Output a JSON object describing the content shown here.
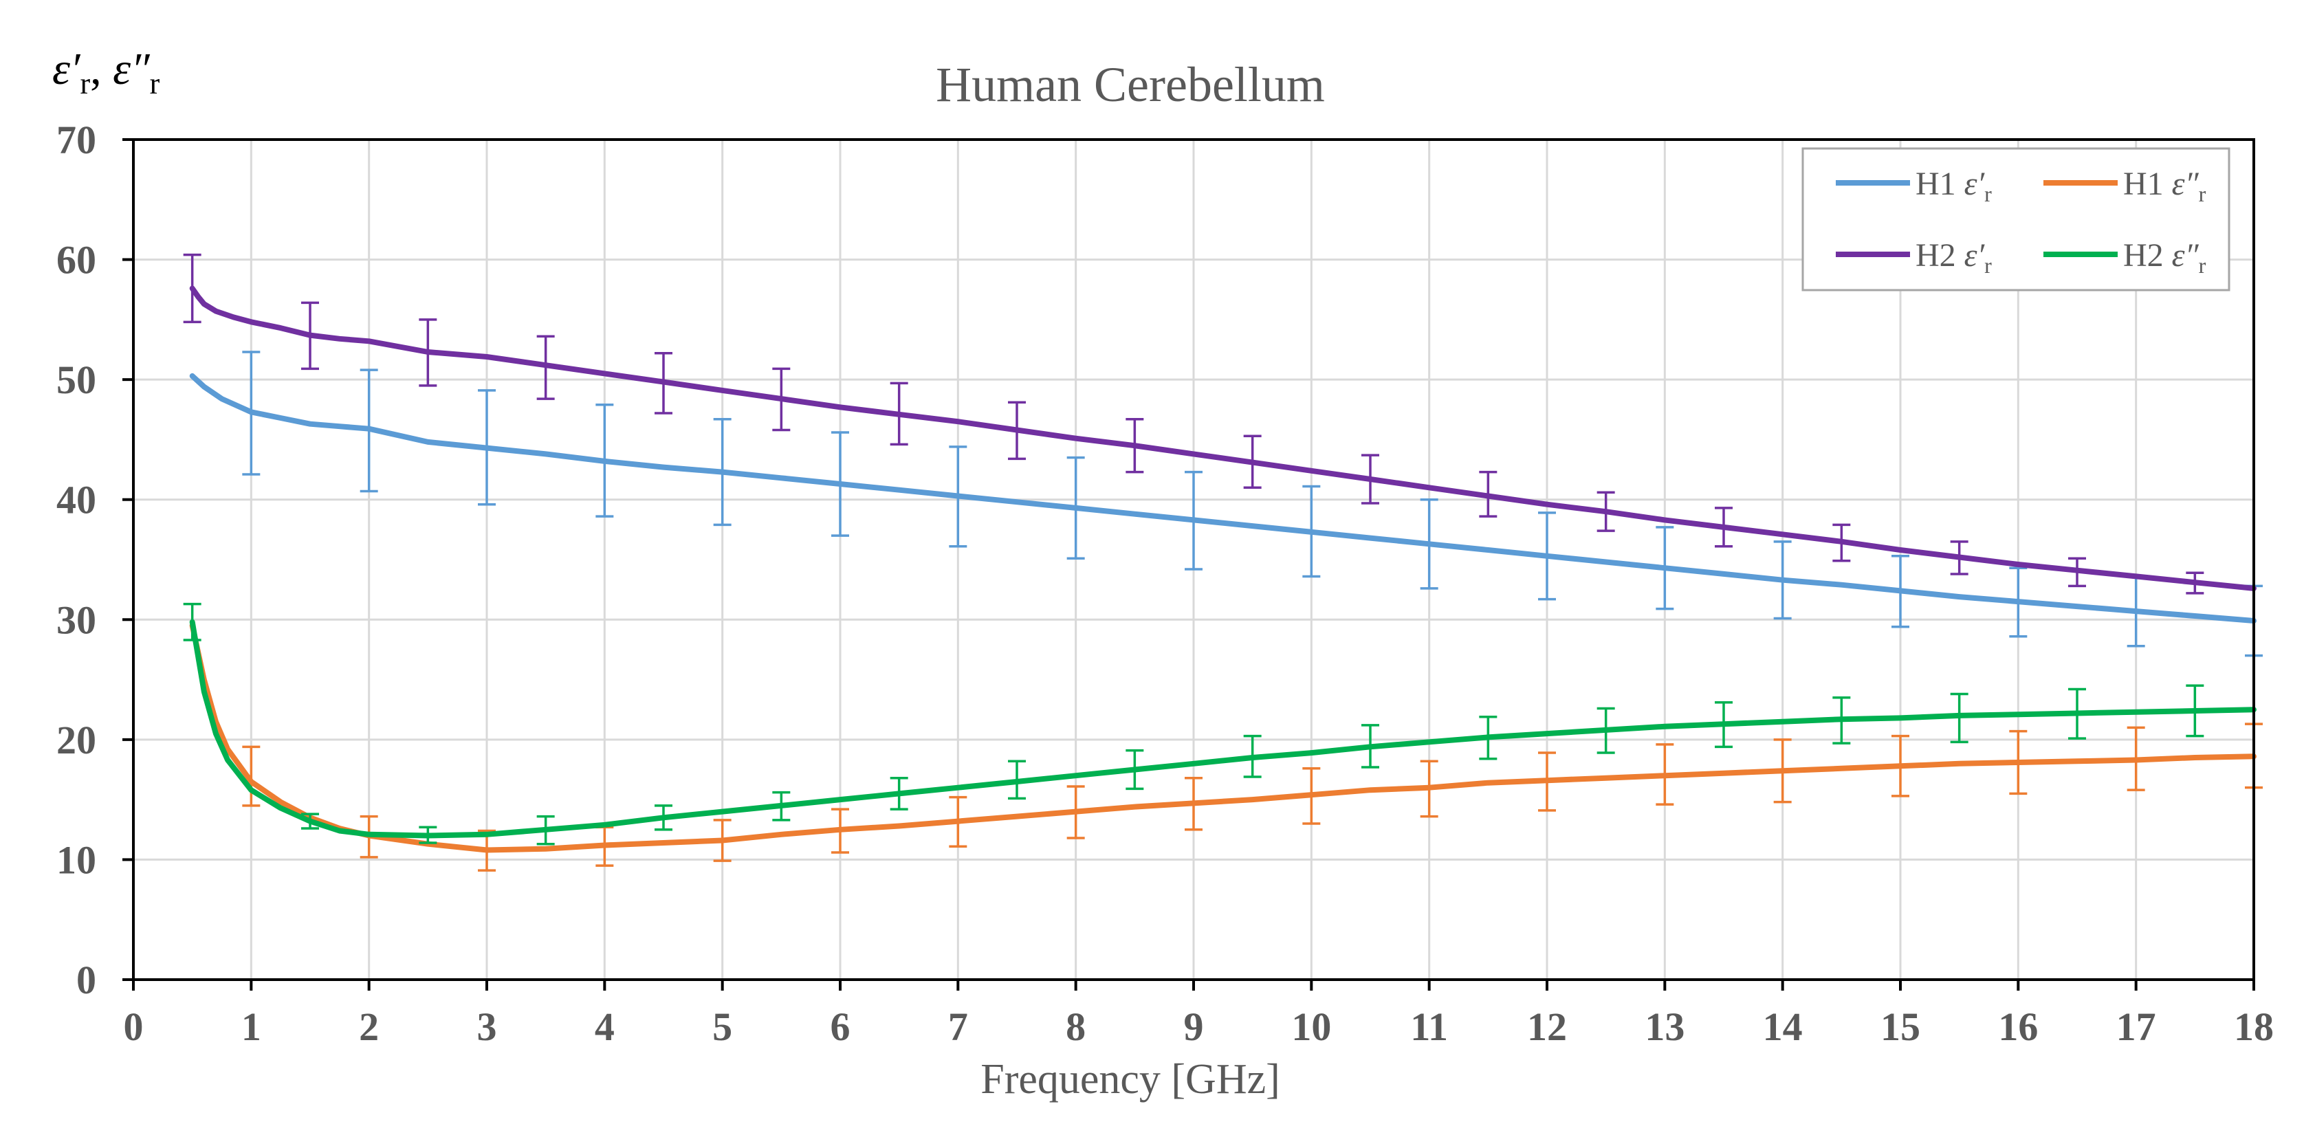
{
  "chart_data": {
    "type": "line",
    "title": "Human Cerebellum",
    "xlabel": "Frequency [GHz]",
    "ylabel": "ε′r, ε″r",
    "ylabel_parts": {
      "eps1": "ε′",
      "sub1": "r",
      "sep": ", ",
      "eps2": "ε″",
      "sub2": "r"
    },
    "xlim": [
      0,
      18
    ],
    "ylim": [
      0,
      70
    ],
    "xticks": [
      0,
      1,
      2,
      3,
      4,
      5,
      6,
      7,
      8,
      9,
      10,
      11,
      12,
      13,
      14,
      15,
      16,
      17,
      18
    ],
    "yticks": [
      0,
      10,
      20,
      30,
      40,
      50,
      60,
      70
    ],
    "grid": true,
    "legend_position": "top-right",
    "series": [
      {
        "name": "H1 ε′r",
        "label_prefix": "H1 ",
        "label_symbol": "ε′",
        "label_sub": "r",
        "color": "#5b9bd5",
        "x": [
          0.5,
          0.6,
          0.75,
          1,
          1.25,
          1.5,
          1.75,
          2,
          2.5,
          3,
          3.5,
          4,
          4.5,
          5,
          5.5,
          6,
          6.5,
          7,
          7.5,
          8,
          8.5,
          9,
          9.5,
          10,
          10.5,
          11,
          11.5,
          12,
          12.5,
          13,
          13.5,
          14,
          14.5,
          15,
          15.5,
          16,
          16.5,
          17,
          17.5,
          18
        ],
        "y": [
          50.3,
          49.4,
          48.4,
          47.3,
          46.8,
          46.3,
          46.1,
          45.9,
          44.8,
          44.3,
          43.8,
          43.2,
          42.7,
          42.3,
          41.8,
          41.3,
          40.8,
          40.3,
          39.8,
          39.3,
          38.8,
          38.3,
          37.8,
          37.3,
          36.8,
          36.3,
          35.8,
          35.3,
          34.8,
          34.3,
          33.8,
          33.3,
          32.9,
          32.4,
          31.9,
          31.5,
          31.1,
          30.7,
          30.3,
          29.9
        ],
        "error_x": [
          1,
          2,
          3,
          4,
          5,
          6,
          7,
          8,
          9,
          10,
          11,
          12,
          13,
          14,
          15,
          16,
          17,
          18
        ],
        "error_y": [
          47.2,
          45.8,
          44.3,
          43.2,
          42.3,
          41.3,
          40.3,
          39.3,
          38.3,
          37.3,
          36.3,
          35.3,
          34.3,
          33.3,
          32.4,
          31.5,
          30.7,
          29.9
        ],
        "error_lo": [
          42.1,
          40.7,
          39.6,
          38.6,
          37.9,
          37.0,
          36.1,
          35.1,
          34.2,
          33.6,
          32.6,
          31.7,
          30.9,
          30.1,
          29.4,
          28.6,
          27.8,
          27.0
        ],
        "error_hi": [
          52.3,
          50.8,
          49.1,
          47.9,
          46.7,
          45.6,
          44.4,
          43.5,
          42.3,
          41.1,
          40.0,
          38.9,
          37.7,
          36.5,
          35.3,
          34.3,
          33.6,
          32.8
        ]
      },
      {
        "name": "H1 ε″r",
        "label_prefix": "H1 ",
        "label_symbol": "ε″",
        "label_sub": "r",
        "color": "#ed7d31",
        "x": [
          0.5,
          0.6,
          0.7,
          0.8,
          1,
          1.25,
          1.5,
          1.75,
          2,
          2.5,
          3,
          3.5,
          4,
          4.5,
          5,
          5.5,
          6,
          6.5,
          7,
          7.5,
          8,
          8.5,
          9,
          9.5,
          10,
          10.5,
          11,
          11.5,
          12,
          12.5,
          13,
          13.5,
          14,
          14.5,
          15,
          15.5,
          16,
          16.5,
          17,
          17.5,
          18
        ],
        "y": [
          29.5,
          25.0,
          21.5,
          19.2,
          16.5,
          14.8,
          13.5,
          12.6,
          12.0,
          11.3,
          10.8,
          10.9,
          11.2,
          11.4,
          11.6,
          12.1,
          12.5,
          12.8,
          13.2,
          13.6,
          14.0,
          14.4,
          14.7,
          15.0,
          15.4,
          15.8,
          16.0,
          16.4,
          16.6,
          16.8,
          17.0,
          17.2,
          17.4,
          17.6,
          17.8,
          18.0,
          18.1,
          18.2,
          18.3,
          18.5,
          18.6
        ],
        "error_x": [
          1,
          2,
          3,
          4,
          5,
          6,
          7,
          8,
          9,
          10,
          11,
          12,
          13,
          14,
          15,
          16,
          17,
          18
        ],
        "error_y": [
          16.9,
          11.9,
          10.7,
          11.1,
          11.6,
          12.4,
          13.1,
          14.0,
          14.6,
          15.3,
          15.9,
          16.5,
          17.0,
          17.4,
          17.8,
          18.1,
          18.4,
          18.6
        ],
        "error_lo": [
          14.5,
          10.2,
          9.1,
          9.5,
          9.9,
          10.6,
          11.1,
          11.8,
          12.5,
          13.0,
          13.6,
          14.1,
          14.6,
          14.8,
          15.3,
          15.5,
          15.8,
          16.0
        ],
        "error_hi": [
          19.4,
          13.6,
          12.4,
          12.7,
          13.3,
          14.2,
          15.2,
          16.1,
          16.8,
          17.6,
          18.2,
          18.9,
          19.6,
          20.0,
          20.3,
          20.7,
          21.0,
          21.3
        ]
      },
      {
        "name": "H2 ε′r",
        "label_prefix": "H2 ",
        "label_symbol": "ε′",
        "label_sub": "r",
        "color": "#7030a0",
        "x": [
          0.5,
          0.55,
          0.6,
          0.7,
          0.85,
          1,
          1.25,
          1.5,
          1.75,
          2,
          2.5,
          3,
          3.5,
          4,
          4.5,
          5,
          5.5,
          6,
          6.5,
          7,
          7.5,
          8,
          8.5,
          9,
          9.5,
          10,
          10.5,
          11,
          11.5,
          12,
          12.5,
          13,
          13.5,
          14,
          14.5,
          15,
          15.5,
          16,
          16.5,
          17,
          17.5,
          18
        ],
        "y": [
          57.6,
          56.9,
          56.3,
          55.7,
          55.2,
          54.8,
          54.3,
          53.7,
          53.4,
          53.2,
          52.3,
          51.9,
          51.2,
          50.5,
          49.8,
          49.1,
          48.4,
          47.7,
          47.1,
          46.5,
          45.8,
          45.1,
          44.5,
          43.8,
          43.1,
          42.4,
          41.7,
          41.0,
          40.3,
          39.6,
          39.0,
          38.3,
          37.7,
          37.1,
          36.5,
          35.8,
          35.2,
          34.6,
          34.1,
          33.6,
          33.1,
          32.6
        ],
        "error_x": [
          0.5,
          1.5,
          2.5,
          3.5,
          4.5,
          5.5,
          6.5,
          7.5,
          8.5,
          9.5,
          10.5,
          11.5,
          12.5,
          13.5,
          14.5,
          15.5,
          16.5,
          17.5
        ],
        "error_y": [
          57.6,
          53.7,
          52.3,
          51.2,
          49.8,
          48.4,
          47.1,
          45.8,
          44.5,
          43.1,
          41.7,
          40.3,
          39.0,
          37.7,
          36.5,
          35.2,
          34.1,
          33.1
        ],
        "error_lo": [
          54.8,
          50.9,
          49.5,
          48.4,
          47.2,
          45.8,
          44.6,
          43.4,
          42.3,
          41.0,
          39.7,
          38.6,
          37.4,
          36.1,
          34.9,
          33.8,
          32.8,
          32.2
        ],
        "error_hi": [
          60.4,
          56.4,
          55.0,
          53.6,
          52.2,
          50.9,
          49.7,
          48.1,
          46.7,
          45.3,
          43.7,
          42.3,
          40.6,
          39.3,
          37.9,
          36.5,
          35.1,
          33.9
        ]
      },
      {
        "name": "H2 ε″r",
        "label_prefix": "H2 ",
        "label_symbol": "ε″",
        "label_sub": "r",
        "color": "#00b050",
        "x": [
          0.5,
          0.6,
          0.7,
          0.8,
          1,
          1.25,
          1.5,
          1.75,
          2,
          2.5,
          3,
          3.5,
          4,
          4.5,
          5,
          5.5,
          6,
          6.5,
          7,
          7.5,
          8,
          8.5,
          9,
          9.5,
          10,
          10.5,
          11,
          11.5,
          12,
          12.5,
          13,
          13.5,
          14,
          14.5,
          15,
          15.5,
          16,
          16.5,
          17,
          17.5,
          18
        ],
        "y": [
          29.8,
          24.0,
          20.5,
          18.3,
          15.8,
          14.3,
          13.2,
          12.4,
          12.1,
          12.0,
          12.1,
          12.5,
          12.9,
          13.5,
          14.0,
          14.5,
          15.0,
          15.5,
          16.0,
          16.5,
          17.0,
          17.5,
          18.0,
          18.5,
          18.9,
          19.4,
          19.8,
          20.2,
          20.5,
          20.8,
          21.1,
          21.3,
          21.5,
          21.7,
          21.8,
          22.0,
          22.1,
          22.2,
          22.3,
          22.4,
          22.5
        ],
        "error_x": [
          0.5,
          1.5,
          2.5,
          3.5,
          4.5,
          5.5,
          6.5,
          7.5,
          8.5,
          9.5,
          10.5,
          11.5,
          12.5,
          13.5,
          14.5,
          15.5,
          16.5,
          17.5
        ],
        "error_y": [
          29.8,
          13.2,
          12.0,
          12.5,
          13.5,
          14.5,
          15.5,
          16.5,
          17.5,
          18.5,
          19.4,
          20.2,
          20.8,
          21.3,
          21.7,
          22.0,
          22.2,
          22.4
        ],
        "error_lo": [
          28.3,
          12.6,
          11.4,
          11.3,
          12.5,
          13.3,
          14.2,
          15.1,
          15.9,
          16.9,
          17.7,
          18.4,
          18.9,
          19.4,
          19.7,
          19.8,
          20.1,
          20.3
        ],
        "error_hi": [
          31.3,
          13.8,
          12.7,
          13.6,
          14.5,
          15.6,
          16.8,
          18.2,
          19.1,
          20.3,
          21.2,
          21.9,
          22.6,
          23.1,
          23.5,
          23.8,
          24.2,
          24.5
        ]
      }
    ]
  }
}
